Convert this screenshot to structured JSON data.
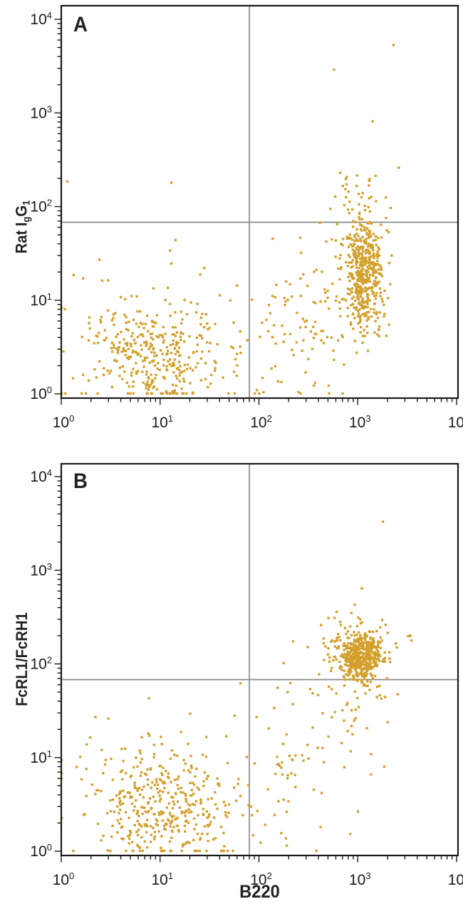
{
  "figure": {
    "background_color": "#FFFFFF",
    "text_color": "#231F20",
    "panel_count": 2
  },
  "colors": {
    "dot": "#D3A02C",
    "quadrant_line": "#8A8A8A",
    "axis_line": "#1A1A1A"
  },
  "chart_data": [
    {
      "type": "scatter",
      "panel_label": "A",
      "xlabel": "B220",
      "xlabel_visible": false,
      "ylabel_text": "Rat IgG1",
      "ylabel_segments": [
        {
          "t": "Rat I"
        },
        {
          "t": "g",
          "sub": true
        },
        {
          "t": "G"
        },
        {
          "t": "1",
          "sub": true
        }
      ],
      "x_scale": "log",
      "y_scale": "log",
      "x_range": [
        1,
        10000
      ],
      "y_range": [
        1,
        10000
      ],
      "tick_base": "10",
      "x_tick_exponents": [
        0,
        1,
        2,
        3,
        4
      ],
      "y_tick_exponents": [
        0,
        1,
        2,
        3,
        4
      ],
      "minor_ticks_per_decade": [
        2,
        3,
        4,
        5,
        6,
        7,
        8,
        9
      ],
      "quadrant_gate": {
        "x": 80,
        "y": 68
      },
      "clusters": [
        {
          "name": "double-negative-core",
          "n": 320,
          "center_log10": [
            0.98,
            0.4
          ],
          "sigma_log10": [
            0.33,
            0.26
          ]
        },
        {
          "name": "double-negative-halo",
          "n": 70,
          "center_log10": [
            0.95,
            0.55
          ],
          "sigma_log10": [
            0.5,
            0.42
          ]
        },
        {
          "name": "b220-positive-isotype-core",
          "n": 420,
          "center_log10": [
            3.06,
            1.26
          ],
          "sigma_log10": [
            0.095,
            0.3
          ]
        },
        {
          "name": "b220-positive-isotype-halo",
          "n": 80,
          "center_log10": [
            3.0,
            1.4
          ],
          "sigma_log10": [
            0.22,
            0.5
          ]
        },
        {
          "name": "bridge-scatter",
          "n": 85,
          "center_log10": [
            2.45,
            0.65
          ],
          "sigma_log10": [
            0.3,
            0.42
          ]
        },
        {
          "name": "upper-right-band",
          "n": 20,
          "center_log10": [
            3.02,
            2.15
          ],
          "sigma_log10": [
            0.17,
            0.16
          ]
        }
      ],
      "outlier_points": [
        [
          2300,
          5300
        ],
        [
          575,
          2900
        ],
        [
          13,
          180
        ],
        [
          1.15,
          185
        ],
        [
          2600,
          260
        ]
      ]
    },
    {
      "type": "scatter",
      "panel_label": "B",
      "xlabel": "B220",
      "xlabel_visible": true,
      "ylabel_text": "FcRL1/FcRH1",
      "ylabel_segments": [
        {
          "t": "FcRL1/FcRH1"
        }
      ],
      "x_scale": "log",
      "y_scale": "log",
      "x_range": [
        1,
        10000
      ],
      "y_range": [
        1,
        10000
      ],
      "tick_base": "10",
      "x_tick_exponents": [
        0,
        1,
        2,
        3,
        4
      ],
      "y_tick_exponents": [
        0,
        1,
        2,
        3,
        4
      ],
      "minor_ticks_per_decade": [
        2,
        3,
        4,
        5,
        6,
        7,
        8,
        9
      ],
      "quadrant_gate": {
        "x": 80,
        "y": 68
      },
      "clusters": [
        {
          "name": "double-negative-core",
          "n": 330,
          "center_log10": [
            1.0,
            0.45
          ],
          "sigma_log10": [
            0.36,
            0.3
          ]
        },
        {
          "name": "double-negative-halo",
          "n": 80,
          "center_log10": [
            1.0,
            0.6
          ],
          "sigma_log10": [
            0.55,
            0.45
          ]
        },
        {
          "name": "b220-fcrl1-double-positive-core",
          "n": 430,
          "center_log10": [
            3.04,
            2.08
          ],
          "sigma_log10": [
            0.1,
            0.12
          ]
        },
        {
          "name": "b220-fcrl1-double-positive-halo",
          "n": 110,
          "center_log10": [
            3.0,
            2.12
          ],
          "sigma_log10": [
            0.22,
            0.27
          ]
        },
        {
          "name": "bridge-scatter",
          "n": 60,
          "center_log10": [
            2.35,
            0.85
          ],
          "sigma_log10": [
            0.35,
            0.5
          ]
        },
        {
          "name": "below-gate-band",
          "n": 24,
          "center_log10": [
            2.95,
            1.5
          ],
          "sigma_log10": [
            0.2,
            0.25
          ]
        }
      ],
      "outlier_points": [
        [
          1800,
          3300
        ],
        [
          1100,
          640
        ],
        [
          3400,
          200
        ],
        [
          65,
          62
        ]
      ]
    }
  ]
}
